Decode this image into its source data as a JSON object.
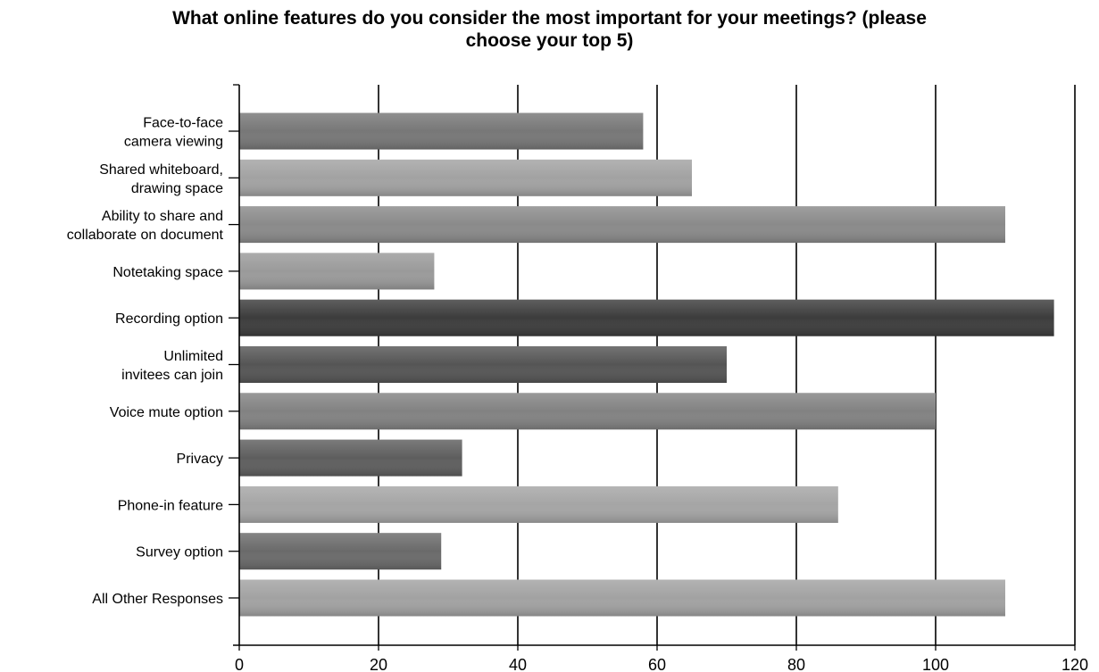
{
  "chart_data": {
    "type": "bar",
    "orientation": "horizontal",
    "title": "What online features do you consider the most important for your meetings? (please choose your top 5)",
    "title_lines": [
      "What online features do you consider the most important for your meetings? (please",
      "choose your top 5)"
    ],
    "categories": [
      "Face-to-face camera viewing",
      "Shared whiteboard, drawing space",
      "Ability to share and collaborate on document",
      "Notetaking space",
      "Recording option",
      "Unlimited invitees can join",
      "Voice mute option",
      "Privacy",
      "Phone-in feature",
      "Survey option",
      "All Other Responses"
    ],
    "category_lines": [
      [
        "Face-to-face",
        "camera viewing"
      ],
      [
        "Shared whiteboard,",
        "drawing space"
      ],
      [
        "Ability to share and",
        "collaborate on document"
      ],
      [
        "Notetaking space"
      ],
      [
        "Recording option"
      ],
      [
        "Unlimited",
        "invitees can join"
      ],
      [
        "Voice mute option"
      ],
      [
        "Privacy"
      ],
      [
        "Phone-in feature"
      ],
      [
        "Survey option"
      ],
      [
        "All Other Responses"
      ]
    ],
    "values": [
      58,
      65,
      110,
      28,
      117,
      70,
      100,
      32,
      86,
      29,
      110
    ],
    "bar_colors": [
      "#777777",
      "#a2a2a2",
      "#8a8a8a",
      "#9a9a9a",
      "#3c3c3c",
      "#555555",
      "#828282",
      "#5e5e5e",
      "#a5a5a5",
      "#6a6a6a",
      "#a2a2a2"
    ],
    "xlim": [
      0,
      120
    ],
    "xticks": [
      0,
      20,
      40,
      60,
      80,
      100,
      120
    ],
    "xlabel": "",
    "ylabel": "",
    "grid": "vertical"
  }
}
